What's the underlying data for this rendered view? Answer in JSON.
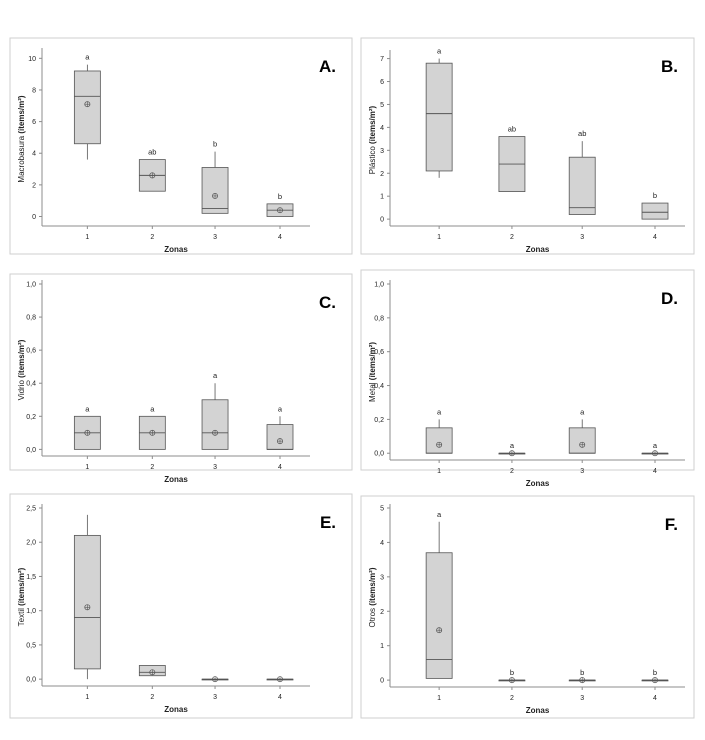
{
  "chart_data": [
    {
      "type": "box",
      "panel_label": "A.",
      "ylabel": "Macrobasura",
      "ylabel_unit": "(ítems/m²)",
      "xlabel": "Zonas",
      "categories": [
        "1",
        "2",
        "3",
        "4"
      ],
      "yticks": [
        "0",
        "2",
        "4",
        "6",
        "8",
        "10"
      ],
      "ylim": [
        -0.6,
        10.4
      ],
      "boxes": [
        {
          "min": 3.6,
          "q1": 4.6,
          "median": 7.6,
          "q3": 9.2,
          "max": 9.6,
          "mean": 7.1,
          "letter": "a"
        },
        {
          "min": 1.6,
          "q1": 1.6,
          "median": 2.6,
          "q3": 3.6,
          "max": 3.6,
          "mean": 2.6,
          "letter": "ab"
        },
        {
          "min": 0.2,
          "q1": 0.2,
          "median": 0.5,
          "q3": 3.1,
          "max": 4.1,
          "mean": 1.3,
          "letter": "b"
        },
        {
          "min": 0.0,
          "q1": 0.0,
          "median": 0.4,
          "q3": 0.8,
          "max": 0.8,
          "mean": 0.4,
          "letter": "b"
        }
      ]
    },
    {
      "type": "box",
      "panel_label": "B.",
      "ylabel": "Plástico",
      "ylabel_unit": "(ítems/m²)",
      "xlabel": "Zonas",
      "categories": [
        "1",
        "2",
        "3",
        "4"
      ],
      "yticks": [
        "0",
        "1",
        "2",
        "3",
        "4",
        "5",
        "6",
        "7"
      ],
      "ylim": [
        -0.3,
        7.2
      ],
      "boxes": [
        {
          "min": 1.8,
          "q1": 2.1,
          "median": 4.6,
          "q3": 6.8,
          "max": 7.0,
          "mean": null,
          "letter": "a"
        },
        {
          "min": 1.2,
          "q1": 1.2,
          "median": 2.4,
          "q3": 3.6,
          "max": 3.6,
          "mean": null,
          "letter": "ab"
        },
        {
          "min": 0.2,
          "q1": 0.2,
          "median": 0.5,
          "q3": 2.7,
          "max": 3.4,
          "mean": null,
          "letter": "ab"
        },
        {
          "min": 0.0,
          "q1": 0.0,
          "median": 0.3,
          "q3": 0.7,
          "max": 0.7,
          "mean": null,
          "letter": "b"
        }
      ]
    },
    {
      "type": "box",
      "panel_label": "C.",
      "ylabel": "Vidrio",
      "ylabel_unit": "(ítems/m²)",
      "xlabel": "Zonas",
      "categories": [
        "1",
        "2",
        "3",
        "4"
      ],
      "yticks": [
        "0,0",
        "0,2",
        "0,4",
        "0,6",
        "0,8",
        "1,0"
      ],
      "ylim": [
        -0.04,
        1.0
      ],
      "boxes": [
        {
          "min": 0.0,
          "q1": 0.0,
          "median": 0.1,
          "q3": 0.2,
          "max": 0.2,
          "mean": 0.1,
          "letter": "a"
        },
        {
          "min": 0.0,
          "q1": 0.0,
          "median": 0.1,
          "q3": 0.2,
          "max": 0.2,
          "mean": 0.1,
          "letter": "a"
        },
        {
          "min": 0.0,
          "q1": 0.0,
          "median": 0.1,
          "q3": 0.3,
          "max": 0.4,
          "mean": 0.1,
          "letter": "a"
        },
        {
          "min": 0.0,
          "q1": 0.0,
          "median": 0.0,
          "q3": 0.15,
          "max": 0.2,
          "mean": 0.05,
          "letter": "a"
        }
      ]
    },
    {
      "type": "box",
      "panel_label": "D.",
      "ylabel": "Metal",
      "ylabel_unit": "(ítems/m²)",
      "xlabel": "Zonas",
      "categories": [
        "1",
        "2",
        "3",
        "4"
      ],
      "yticks": [
        "0,0",
        "0,2",
        "0,4",
        "0,6",
        "0,8",
        "1,0"
      ],
      "ylim": [
        -0.04,
        1.0
      ],
      "boxes": [
        {
          "min": 0.0,
          "q1": 0.0,
          "median": 0.0,
          "q3": 0.15,
          "max": 0.2,
          "mean": 0.05,
          "letter": "a"
        },
        {
          "min": 0.0,
          "q1": 0.0,
          "median": 0.0,
          "q3": 0.0,
          "max": 0.0,
          "mean": 0.0,
          "letter": "a"
        },
        {
          "min": 0.0,
          "q1": 0.0,
          "median": 0.0,
          "q3": 0.15,
          "max": 0.2,
          "mean": 0.05,
          "letter": "a"
        },
        {
          "min": 0.0,
          "q1": 0.0,
          "median": 0.0,
          "q3": 0.0,
          "max": 0.0,
          "mean": 0.0,
          "letter": "a"
        }
      ]
    },
    {
      "type": "box",
      "panel_label": "E.",
      "ylabel": "Textil",
      "ylabel_unit": "(ítems/m²)",
      "xlabel": "Zonas",
      "categories": [
        "1",
        "2",
        "3",
        "4"
      ],
      "yticks": [
        "0,0",
        "0,5",
        "1,0",
        "1,5",
        "2,0",
        "2,5"
      ],
      "ylim": [
        -0.1,
        2.5
      ],
      "boxes": [
        {
          "min": 0.0,
          "q1": 0.15,
          "median": 0.9,
          "q3": 2.1,
          "max": 2.4,
          "mean": 1.05,
          "letter": ""
        },
        {
          "min": 0.05,
          "q1": 0.05,
          "median": 0.1,
          "q3": 0.2,
          "max": 0.2,
          "mean": 0.1,
          "letter": ""
        },
        {
          "min": 0.0,
          "q1": 0.0,
          "median": 0.0,
          "q3": 0.0,
          "max": 0.0,
          "mean": 0.0,
          "letter": ""
        },
        {
          "min": 0.0,
          "q1": 0.0,
          "median": 0.0,
          "q3": 0.0,
          "max": 0.0,
          "mean": 0.0,
          "letter": ""
        }
      ]
    },
    {
      "type": "box",
      "panel_label": "F.",
      "ylabel": "Otros",
      "ylabel_unit": "(ítems/m²)",
      "xlabel": "Zonas",
      "categories": [
        "1",
        "2",
        "3",
        "4"
      ],
      "yticks": [
        "0",
        "1",
        "2",
        "3",
        "4",
        "5"
      ],
      "ylim": [
        -0.2,
        5.0
      ],
      "boxes": [
        {
          "min": 0.05,
          "q1": 0.05,
          "median": 0.6,
          "q3": 3.7,
          "max": 4.6,
          "mean": 1.45,
          "letter": "a"
        },
        {
          "min": 0.0,
          "q1": 0.0,
          "median": 0.0,
          "q3": 0.0,
          "max": 0.0,
          "mean": 0.0,
          "letter": "b"
        },
        {
          "min": 0.0,
          "q1": 0.0,
          "median": 0.0,
          "q3": 0.0,
          "max": 0.0,
          "mean": 0.0,
          "letter": "b"
        },
        {
          "min": 0.0,
          "q1": 0.0,
          "median": 0.0,
          "q3": 0.0,
          "max": 0.0,
          "mean": 0.0,
          "letter": "b"
        }
      ]
    }
  ],
  "colors": {
    "box_fill": "#d3d3d3",
    "box_stroke": "#555555",
    "axis": "#8c8c8c",
    "frame": "#cfcfcf",
    "text": "#222222"
  }
}
